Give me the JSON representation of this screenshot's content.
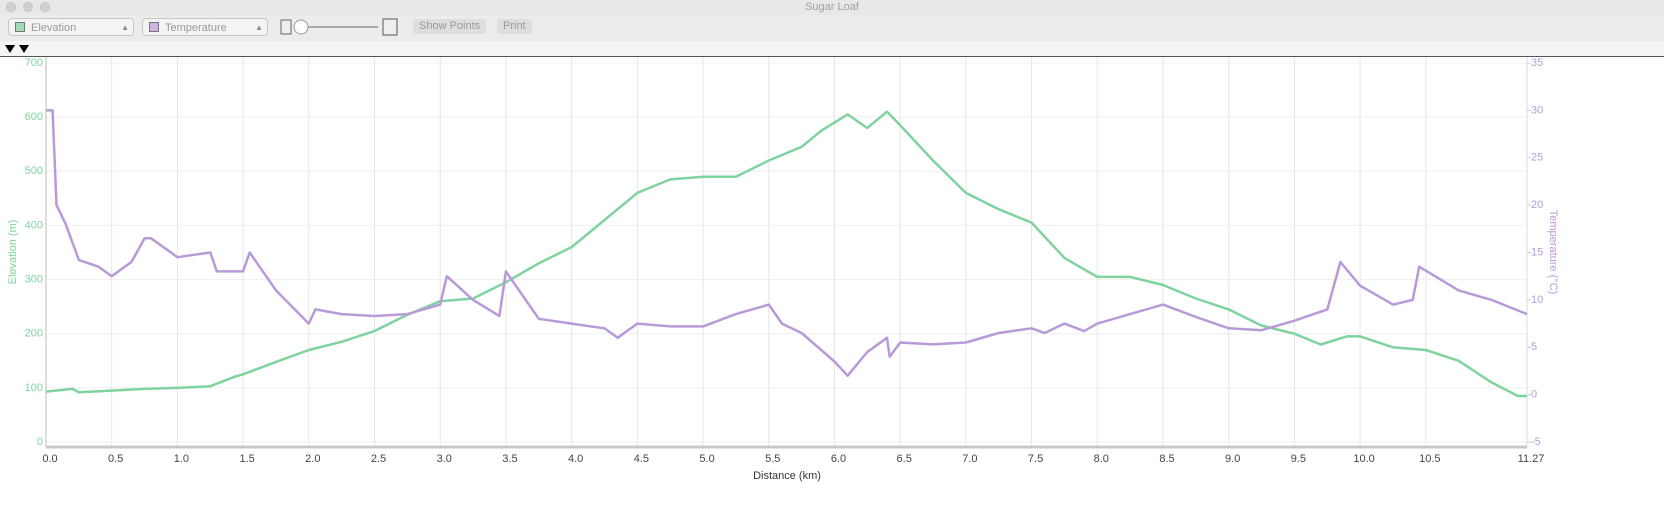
{
  "window": {
    "title": "Sugar Loaf"
  },
  "toolbar": {
    "buttons": [
      "Show Points",
      "Print"
    ]
  },
  "chart_data": {
    "type": "line",
    "xlabel": "Distance (km)",
    "ylabel": "Elevation (m)",
    "y2label": "Temperature (°C)",
    "xlim": [
      0,
      11.27
    ],
    "xticks": [
      {
        "value": 0,
        "label": "0.0"
      },
      0.5,
      {
        "value": 1,
        "label": "1.0"
      },
      1.5,
      {
        "value": 2,
        "label": "2.0"
      },
      2.5,
      {
        "value": 3,
        "label": "3.0"
      },
      3.5,
      {
        "value": 4,
        "label": "4.0"
      },
      4.5,
      {
        "value": 5,
        "label": "5.0"
      },
      5.5,
      {
        "value": 6,
        "label": "6.0"
      },
      6.5,
      {
        "value": 7,
        "label": "7.0"
      },
      7.5,
      {
        "value": 8,
        "label": "8.0"
      },
      8.5,
      {
        "value": 9,
        "label": "9.0"
      },
      9.5,
      {
        "value": 10,
        "label": "10.0"
      },
      10.5,
      11.27
    ],
    "ylim": [
      0,
      700
    ],
    "yticks": [
      0,
      100,
      200,
      300,
      400,
      500,
      600,
      700
    ],
    "y2lim": [
      -5,
      35
    ],
    "y2ticks": [
      -5,
      0,
      5,
      10,
      15,
      20,
      25,
      30,
      35
    ],
    "grid": true,
    "series": [
      {
        "name": "Elevation",
        "color": "#7fd3a0",
        "x": [
          0,
          0.2,
          0.25,
          0.5,
          0.75,
          1,
          1.25,
          1.43,
          1.5,
          1.75,
          2,
          2.25,
          2.5,
          2.75,
          3,
          3.25,
          3.5,
          3.75,
          4,
          4.25,
          4.5,
          4.75,
          5,
          5.25,
          5.5,
          5.75,
          5.9,
          6,
          6.1,
          6.25,
          6.4,
          6.5,
          6.75,
          7,
          7.25,
          7.5,
          7.75,
          8,
          8.25,
          8.5,
          8.75,
          9,
          9.25,
          9.5,
          9.7,
          9.9,
          10,
          10.25,
          10.5,
          10.75,
          11,
          11.2,
          11.27
        ],
        "values": [
          93,
          98,
          92,
          95,
          98,
          100,
          103,
          120,
          125,
          148,
          170,
          185,
          205,
          235,
          260,
          265,
          295,
          330,
          360,
          410,
          460,
          485,
          490,
          490,
          520,
          545,
          575,
          590,
          605,
          580,
          610,
          585,
          520,
          460,
          430,
          405,
          340,
          305,
          305,
          290,
          265,
          245,
          215,
          200,
          180,
          195,
          195,
          175,
          170,
          150,
          110,
          85,
          85
        ]
      },
      {
        "name": "Temperature",
        "color": "#b99ad8",
        "axis": "y2",
        "x": [
          0,
          0.05,
          0.08,
          0.15,
          0.25,
          0.4,
          0.5,
          0.65,
          0.75,
          0.8,
          1,
          1.25,
          1.3,
          1.5,
          1.55,
          1.75,
          2,
          2.05,
          2.25,
          2.5,
          2.75,
          3,
          3.05,
          3.25,
          3.45,
          3.5,
          3.75,
          4,
          4.25,
          4.35,
          4.5,
          4.75,
          5,
          5.25,
          5.5,
          5.6,
          5.75,
          6,
          6.1,
          6.25,
          6.4,
          6.42,
          6.5,
          6.75,
          7,
          7.25,
          7.5,
          7.6,
          7.75,
          7.9,
          8,
          8.25,
          8.5,
          8.75,
          9,
          9.25,
          9.5,
          9.75,
          9.85,
          10,
          10.25,
          10.4,
          10.45,
          10.75,
          11,
          11.27
        ],
        "values": [
          30,
          30,
          20,
          18,
          14.2,
          13.5,
          12.5,
          14,
          16.5,
          16.5,
          14.5,
          15,
          13,
          13,
          15,
          11,
          7.5,
          9,
          8.5,
          8.3,
          8.5,
          9.5,
          12.5,
          10,
          8.3,
          13,
          8,
          7.5,
          7,
          6,
          7.5,
          7.2,
          7.2,
          8.5,
          9.5,
          7.5,
          6.5,
          3.5,
          2,
          4.5,
          6,
          4,
          5.5,
          5.3,
          5.5,
          6.5,
          7,
          6.5,
          7.5,
          6.7,
          7.5,
          8.5,
          9.5,
          8.2,
          7,
          6.8,
          7.8,
          9,
          14,
          11.5,
          9.5,
          10,
          13.5,
          11,
          10,
          8.5
        ]
      }
    ]
  }
}
